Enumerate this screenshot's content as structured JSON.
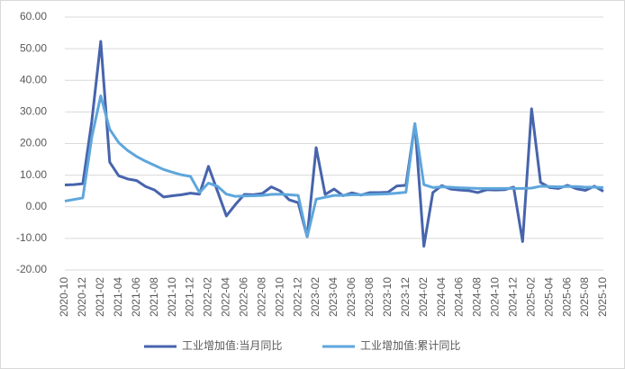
{
  "chart_data": {
    "type": "line",
    "categories": [
      "2020-10",
      null,
      "2020-12",
      null,
      "2021-02",
      null,
      "2021-04",
      null,
      "2021-06",
      null,
      "2021-08",
      null,
      "2021-10",
      null,
      "2021-12",
      null,
      "2022-02",
      null,
      "2022-04",
      null,
      "2022-06",
      null,
      "2022-08",
      null,
      "2022-10",
      null,
      "2022-12",
      null,
      "2023-02",
      null,
      "2023-04",
      null,
      "2023-06",
      null,
      "2023-08",
      null,
      "2023-10",
      null,
      "2023-12",
      null,
      "2024-02",
      null,
      "2024-04",
      null,
      "2024-06",
      null,
      "2024-08",
      null,
      "2024-10",
      null,
      "2024-12",
      null,
      "2025-02",
      null,
      "2025-04",
      null,
      "2025-06",
      null,
      "2025-08",
      null,
      "2025-10"
    ],
    "series": [
      {
        "name": "工业增加值:当月同比",
        "color": "#4764ac",
        "values": [
          6.9,
          7.0,
          7.3,
          27,
          52.3,
          14.1,
          9.8,
          8.8,
          8.3,
          6.4,
          5.3,
          3.1,
          3.5,
          3.8,
          4.3,
          4.0,
          12.8,
          5.0,
          -2.9,
          0.7,
          3.9,
          3.8,
          4.2,
          6.3,
          5.0,
          2.2,
          1.3,
          -9.5,
          18.7,
          3.9,
          5.6,
          3.5,
          4.4,
          3.7,
          4.5,
          4.5,
          4.6,
          6.6,
          6.8,
          26.3,
          -12.5,
          4.5,
          6.7,
          5.6,
          5.3,
          5.1,
          4.5,
          5.4,
          5.3,
          5.4,
          6.2,
          -11,
          31,
          7.7,
          6.1,
          5.8,
          6.8,
          5.7,
          5.2,
          6.5,
          4.9
        ]
      },
      {
        "name": "工业增加值:累计同比",
        "color": "#5ea6dc",
        "values": [
          1.8,
          2.3,
          2.8,
          22,
          35.1,
          24.5,
          20.3,
          17.8,
          15.9,
          14.4,
          13.1,
          11.8,
          10.9,
          10.1,
          9.6,
          4.5,
          7.5,
          6.5,
          4.0,
          3.3,
          3.4,
          3.5,
          3.6,
          3.9,
          4.0,
          3.8,
          3.6,
          -9.5,
          2.4,
          3.0,
          3.6,
          3.6,
          3.8,
          3.8,
          3.9,
          4.0,
          4.1,
          4.3,
          4.6,
          26.3,
          7.0,
          6.1,
          6.3,
          6.2,
          6.0,
          5.9,
          5.8,
          5.8,
          5.8,
          5.8,
          5.8,
          5.8,
          5.9,
          6.5,
          6.4,
          6.3,
          6.4,
          6.4,
          6.2,
          6.2,
          6.1
        ]
      }
    ],
    "ylim": [
      -20,
      60
    ],
    "yticks": [
      {
        "value": -20,
        "label": "-20.00"
      },
      {
        "value": -10,
        "label": "-10.00"
      },
      {
        "value": 0,
        "label": "0.00"
      },
      {
        "value": 10,
        "label": "10.00"
      },
      {
        "value": 20,
        "label": "20.00"
      },
      {
        "value": 30,
        "label": "30.00"
      },
      {
        "value": 40,
        "label": "40.00"
      },
      {
        "value": 50,
        "label": "50.00"
      },
      {
        "value": 60,
        "label": "60.00"
      }
    ],
    "grid": true,
    "legend": "bottom"
  }
}
